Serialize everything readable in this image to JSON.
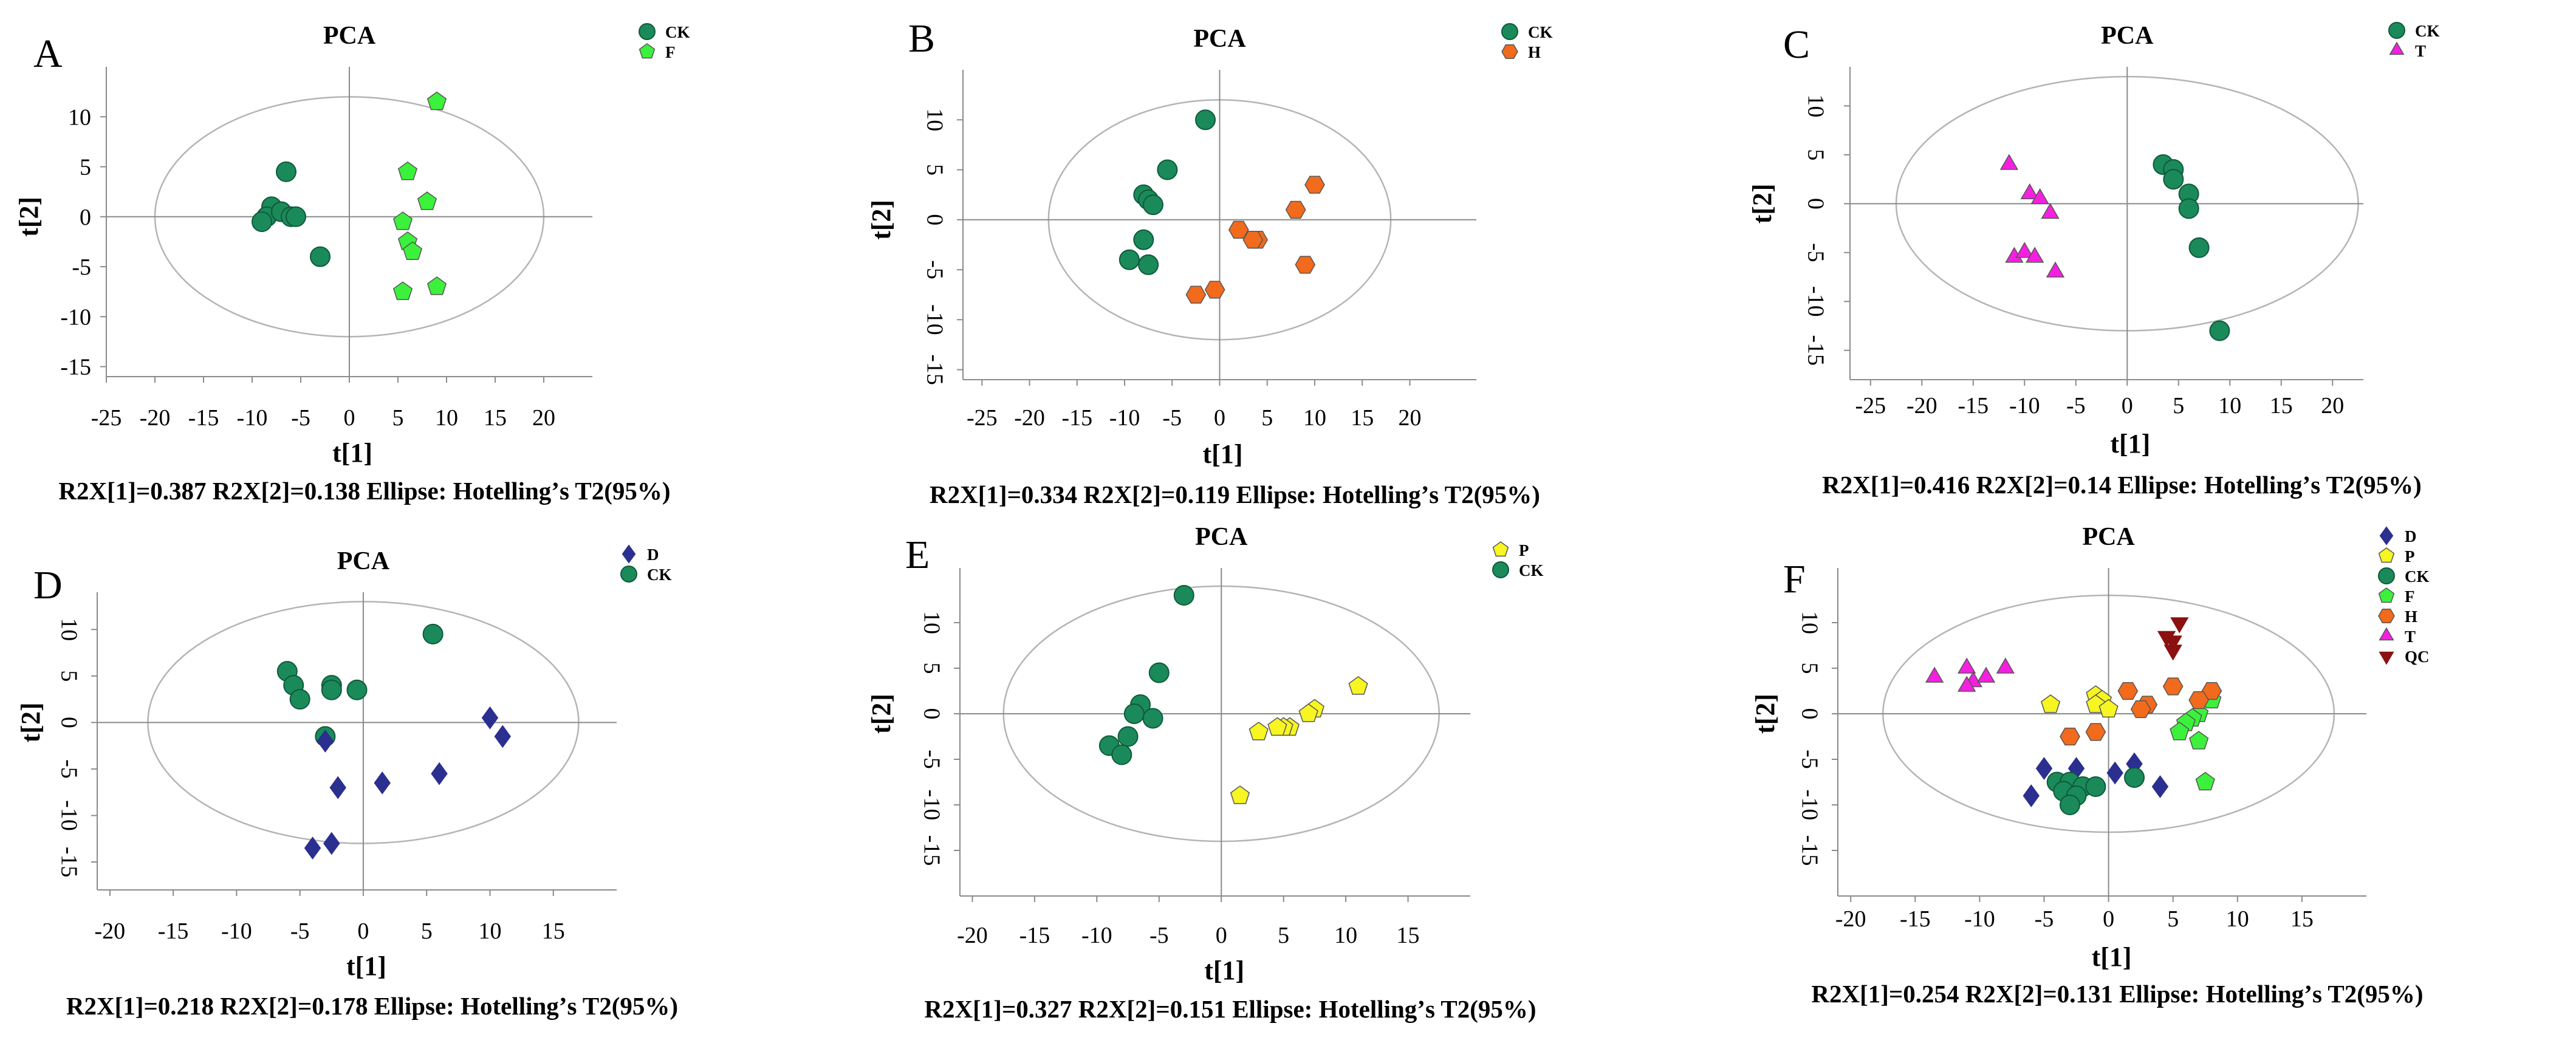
{
  "figure": {
    "colors": {
      "CK": "#1b8a5a",
      "F": "#3cf13c",
      "H": "#f26a1b",
      "T": "#f51fe0",
      "D": "#2b2f8f",
      "P": "#f7f522",
      "QC": "#8b1010"
    },
    "markers": {
      "CK": "circle",
      "F": "pentagon",
      "H": "hexagon",
      "T": "triangle",
      "D": "diamond",
      "P": "pentagon",
      "QC": "triangle-down"
    }
  },
  "chart_data": [
    {
      "id": "A",
      "panel_label": "A",
      "type": "scatter",
      "title": "PCA",
      "xlabel": "t[1]",
      "ylabel": "t[2]",
      "xlim": [
        -25,
        25
      ],
      "ylim": [
        -16,
        15
      ],
      "xticks": [
        "-25",
        "-20",
        "-15",
        "-10",
        "-5",
        "0",
        "5",
        "10",
        "15",
        "20"
      ],
      "yticks": [
        "10",
        "5",
        "0",
        "-5",
        "-10",
        "-15"
      ],
      "yticks_rotated": false,
      "ellipse": {
        "rx": 20,
        "ry": 12
      },
      "caption": "R2X[1]=0.387 R2X[2]=0.138 Ellipse: Hotellingʼs T2(95%)",
      "legend": [
        {
          "label": "CK"
        },
        {
          "label": "F"
        }
      ],
      "series": [
        {
          "name": "CK",
          "x": [
            -6.5,
            -8,
            -8.5,
            -7,
            -6,
            -5.5,
            -9,
            -3
          ],
          "y": [
            4.5,
            1,
            0,
            0.5,
            0,
            0,
            -0.5,
            -4
          ]
        },
        {
          "name": "F",
          "x": [
            9,
            6,
            8,
            5.5,
            6,
            6.5,
            5.5,
            9
          ],
          "y": [
            11.5,
            4.5,
            1.5,
            -0.5,
            -2.5,
            -3.5,
            -7.5,
            -7
          ]
        }
      ]
    },
    {
      "id": "B",
      "panel_label": "B",
      "type": "scatter",
      "title": "PCA",
      "xlabel": "t[1]",
      "ylabel": "t[2]",
      "xlim": [
        -27,
        27
      ],
      "ylim": [
        -16,
        15
      ],
      "xticks": [
        "-25",
        "-20",
        "-15",
        "-10",
        "-5",
        "0",
        "5",
        "10",
        "15",
        "20"
      ],
      "yticks": [
        "10",
        "5",
        "0",
        "-5",
        "-10",
        "-15"
      ],
      "yticks_rotated": true,
      "ellipse": {
        "rx": 18,
        "ry": 12
      },
      "caption": "R2X[1]=0.334 R2X[2]=0.119 Ellipse: Hotellingʼs T2(95%)",
      "legend": [
        {
          "label": "CK"
        },
        {
          "label": "H"
        }
      ],
      "series": [
        {
          "name": "CK",
          "x": [
            -1.5,
            -5.5,
            -8,
            -7.5,
            -7,
            -8,
            -9.5,
            -7.5
          ],
          "y": [
            10,
            5,
            2.5,
            2,
            1.5,
            -2,
            -4,
            -4.5
          ]
        },
        {
          "name": "H",
          "x": [
            10,
            8,
            2,
            4,
            3.5,
            9,
            -0.5,
            -2.5
          ],
          "y": [
            3.5,
            1,
            -1,
            -2,
            -2,
            -4.5,
            -7,
            -7.5
          ]
        }
      ]
    },
    {
      "id": "C",
      "panel_label": "C",
      "type": "scatter",
      "title": "PCA",
      "xlabel": "t[1]",
      "ylabel": "t[2]",
      "xlim": [
        -27,
        23
      ],
      "ylim": [
        -18,
        14
      ],
      "xticks": [
        "-25",
        "-20",
        "-15",
        "-10",
        "-5",
        "0",
        "5",
        "10",
        "15",
        "20"
      ],
      "yticks": [
        "10",
        "5",
        "0",
        "-5",
        "-10",
        "-15"
      ],
      "yticks_rotated": true,
      "ellipse": {
        "rx": 22.5,
        "ry": 13
      },
      "caption": "R2X[1]=0.416 R2X[2]=0.14 Ellipse: Hotellingʼs T2(95%)",
      "legend": [
        {
          "label": "CK"
        },
        {
          "label": "T"
        }
      ],
      "series": [
        {
          "name": "CK",
          "x": [
            3.5,
            4.5,
            4.5,
            6,
            6,
            7,
            9
          ],
          "y": [
            4,
            3.5,
            2.5,
            1,
            -0.5,
            -4.5,
            -13
          ]
        },
        {
          "name": "T",
          "x": [
            -11.5,
            -9.5,
            -8.5,
            -7.5,
            -11,
            -10,
            -9,
            -7
          ],
          "y": [
            4,
            1,
            0.5,
            -1,
            -5.5,
            -5,
            -5.5,
            -7
          ]
        }
      ]
    },
    {
      "id": "D",
      "panel_label": "D",
      "type": "scatter",
      "title": "PCA",
      "xlabel": "t[1]",
      "ylabel": "t[2]",
      "xlim": [
        -21,
        20
      ],
      "ylim": [
        -18,
        14
      ],
      "xticks": [
        "-20",
        "-15",
        "-10",
        "-5",
        "0",
        "5",
        "10",
        "15"
      ],
      "yticks": [
        "10",
        "5",
        "0",
        "-5",
        "-10",
        "-15"
      ],
      "yticks_rotated": true,
      "ellipse": {
        "rx": 17,
        "ry": 13
      },
      "caption": "R2X[1]=0.218 R2X[2]=0.178 Ellipse: Hotellingʼs T2(95%)",
      "legend": [
        {
          "label": "D"
        },
        {
          "label": "CK"
        }
      ],
      "series": [
        {
          "name": "CK",
          "x": [
            5.5,
            -6,
            -5.5,
            -2.5,
            -2.5,
            -0.5,
            -5,
            -3
          ],
          "y": [
            9.5,
            5.5,
            4,
            4,
            3.5,
            3.5,
            2.5,
            -1.5
          ]
        },
        {
          "name": "D",
          "x": [
            10,
            11,
            6,
            1.5,
            -2,
            -2.5,
            -4,
            -3
          ],
          "y": [
            0.5,
            -1.5,
            -5.5,
            -6.5,
            -7,
            -13,
            -13.5,
            -2
          ]
        }
      ]
    },
    {
      "id": "E",
      "panel_label": "E",
      "type": "scatter",
      "title": "PCA",
      "xlabel": "t[1]",
      "ylabel": "t[2]",
      "xlim": [
        -21,
        20
      ],
      "ylim": [
        -20,
        16
      ],
      "xticks": [
        "-20",
        "-15",
        "-10",
        "-5",
        "0",
        "5",
        "10",
        "15"
      ],
      "yticks": [
        "10",
        "5",
        "0",
        "-5",
        "-10",
        "-15"
      ],
      "yticks_rotated": true,
      "ellipse": {
        "rx": 17.5,
        "ry": 14
      },
      "caption": "R2X[1]=0.327 R2X[2]=0.151 Ellipse: Hotellingʼs T2(95%)",
      "legend": [
        {
          "label": "P"
        },
        {
          "label": "CK"
        }
      ],
      "series": [
        {
          "name": "CK",
          "x": [
            -3,
            -5,
            -6.5,
            -7,
            -5.5,
            -7.5,
            -9,
            -8
          ],
          "y": [
            13,
            4.5,
            1,
            0,
            -0.5,
            -2.5,
            -3.5,
            -4.5
          ]
        },
        {
          "name": "P",
          "x": [
            11,
            7.5,
            7,
            5.5,
            5,
            4.5,
            3,
            1.5
          ],
          "y": [
            3,
            0.5,
            0,
            -1.5,
            -1.5,
            -1.5,
            -2,
            -9
          ]
        }
      ]
    },
    {
      "id": "F",
      "panel_label": "F",
      "type": "scatter",
      "title": "PCA",
      "xlabel": "t[1]",
      "ylabel": "t[2]",
      "xlim": [
        -21,
        20
      ],
      "ylim": [
        -20,
        16
      ],
      "xticks": [
        "-20",
        "-15",
        "-10",
        "-5",
        "0",
        "5",
        "10",
        "15"
      ],
      "yticks": [
        "10",
        "5",
        "0",
        "-5",
        "-10",
        "-15"
      ],
      "yticks_rotated": true,
      "ellipse": {
        "rx": 17.5,
        "ry": 13
      },
      "caption": "R2X[1]=0.254 R2X[2]=0.131 Ellipse: Hotellingʼs T2(95%)",
      "legend": [
        {
          "label": "D"
        },
        {
          "label": "P"
        },
        {
          "label": "CK"
        },
        {
          "label": "F"
        },
        {
          "label": "H"
        },
        {
          "label": "T"
        },
        {
          "label": "QC"
        }
      ],
      "series": [
        {
          "name": "D",
          "x": [
            -5,
            -2.5,
            0.5,
            2,
            4,
            -6
          ],
          "y": [
            -6,
            -6,
            -6.5,
            -5.5,
            -8,
            -9
          ]
        },
        {
          "name": "P",
          "x": [
            -1,
            -0.5,
            -1,
            0,
            -4.5
          ],
          "y": [
            2,
            1.5,
            1,
            0.5,
            1
          ]
        },
        {
          "name": "CK",
          "x": [
            -4,
            -3,
            -2,
            -1,
            -3.5,
            -2.5,
            -3,
            2
          ],
          "y": [
            -7.5,
            -7.5,
            -8,
            -8,
            -8.5,
            -9,
            -10,
            -7
          ]
        },
        {
          "name": "F",
          "x": [
            8,
            7,
            6.5,
            6,
            5.5,
            7,
            7.5
          ],
          "y": [
            1.5,
            0,
            -0.5,
            -1,
            -2,
            -3,
            -7.5
          ]
        },
        {
          "name": "H",
          "x": [
            5,
            8,
            7,
            3,
            1.5,
            2.5,
            -1,
            -3
          ],
          "y": [
            3,
            2.5,
            1.5,
            1,
            2.5,
            0.5,
            -2,
            -2.5
          ]
        },
        {
          "name": "T",
          "x": [
            -13.5,
            -11,
            -10.5,
            -9.5,
            -8,
            -11
          ],
          "y": [
            4,
            5,
            3.5,
            4,
            5,
            3
          ]
        },
        {
          "name": "QC",
          "x": [
            5.5,
            4.5,
            5,
            5
          ],
          "y": [
            10,
            8.5,
            8,
            7
          ]
        }
      ]
    }
  ]
}
